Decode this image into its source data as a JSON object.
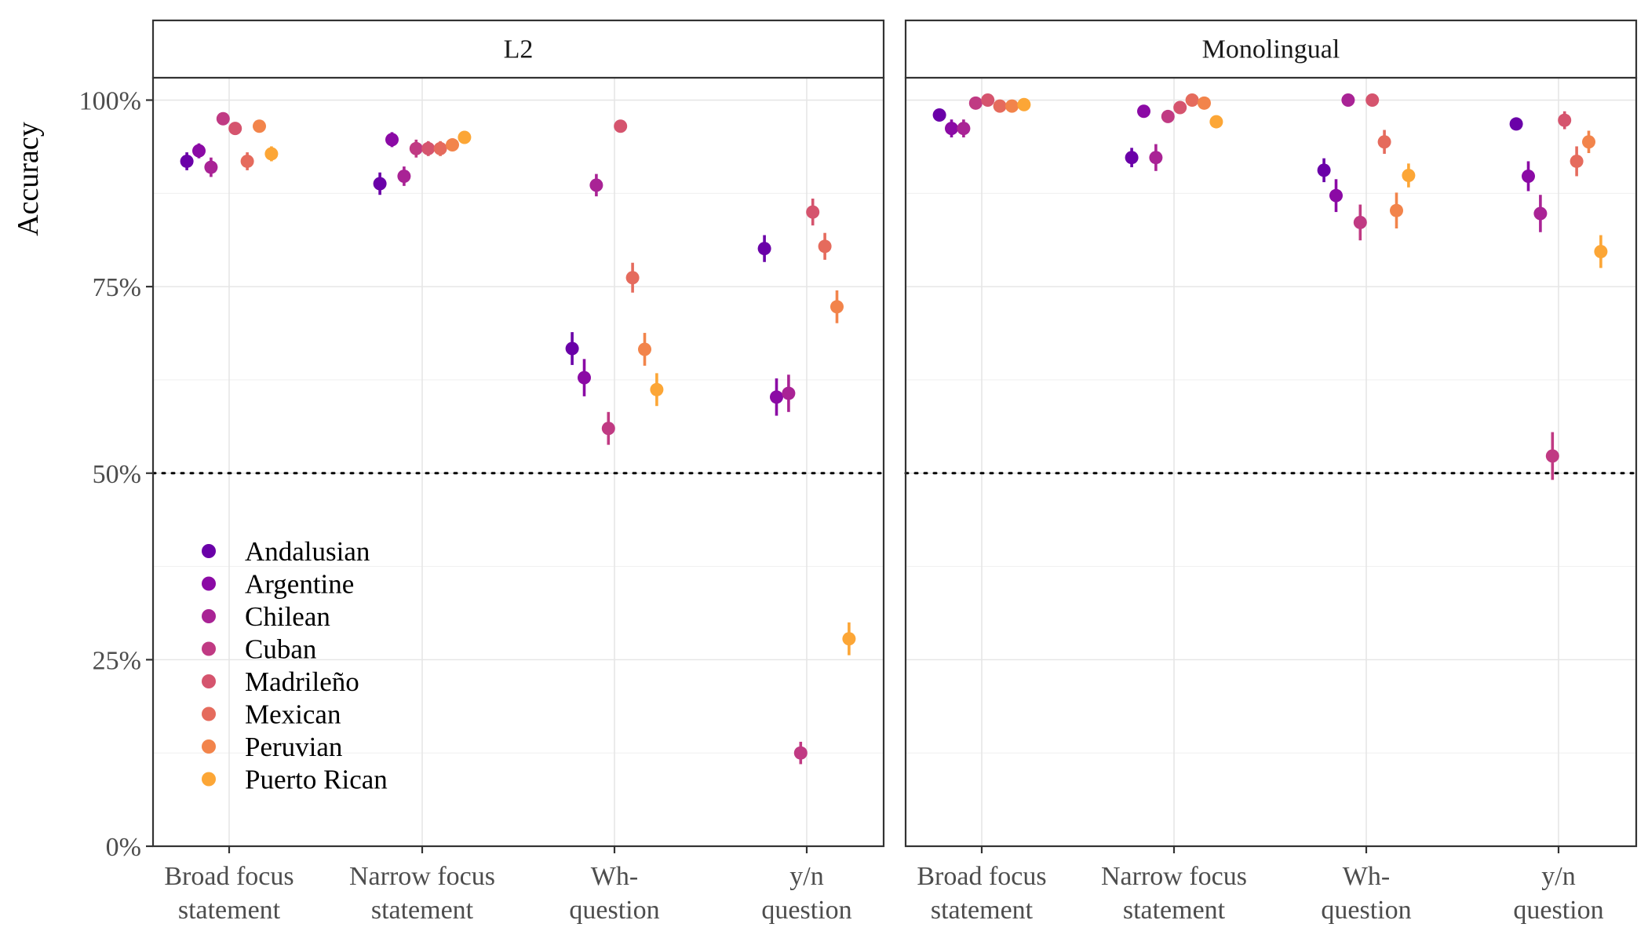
{
  "chart_data": {
    "type": "scatter",
    "ylabel": "Accuracy",
    "xlabel": "",
    "ylim": [
      0,
      1.03
    ],
    "y_ticks": [
      {
        "value": 0,
        "label": "0%"
      },
      {
        "value": 0.25,
        "label": "25%"
      },
      {
        "value": 0.5,
        "label": "50%"
      },
      {
        "value": 0.75,
        "label": "75%"
      },
      {
        "value": 1.0,
        "label": "100%"
      }
    ],
    "reference_line": {
      "value": 0.5,
      "style": "dotted"
    },
    "categories": [
      [
        "Broad focus",
        "statement"
      ],
      [
        "Narrow focus",
        "statement"
      ],
      [
        "Wh-",
        "question"
      ],
      [
        "y/n",
        "question"
      ]
    ],
    "legend_position": "bottom-left of first panel",
    "grid": true,
    "series": [
      {
        "name": "Andalusian",
        "color": "#6a00a8"
      },
      {
        "name": "Argentine",
        "color": "#8b0aa5"
      },
      {
        "name": "Chilean",
        "color": "#a92395"
      },
      {
        "name": "Cuban",
        "color": "#c03a83"
      },
      {
        "name": "Madrileño",
        "color": "#d5546e"
      },
      {
        "name": "Mexican",
        "color": "#e56b5d"
      },
      {
        "name": "Peruvian",
        "color": "#f2844b"
      },
      {
        "name": "Puerto Rican",
        "color": "#fca636"
      }
    ],
    "panels": [
      {
        "title": "L2",
        "values": [
          [
            0.918,
            0.888,
            0.667,
            0.801
          ],
          [
            0.932,
            0.947,
            0.628,
            0.602
          ],
          [
            0.91,
            0.898,
            0.886,
            0.607
          ],
          [
            0.975,
            0.935,
            0.56,
            0.125
          ],
          [
            0.962,
            0.935,
            0.965,
            0.85
          ],
          [
            0.918,
            0.935,
            0.762,
            0.804
          ],
          [
            0.965,
            0.94,
            0.666,
            0.723
          ],
          [
            0.928,
            0.95,
            0.612,
            0.278
          ]
        ],
        "errors": [
          [
            0.012,
            0.015,
            0.022,
            0.018
          ],
          [
            0.01,
            0.01,
            0.025,
            0.025
          ],
          [
            0.013,
            0.013,
            0.015,
            0.025
          ],
          [
            0.008,
            0.012,
            0.022,
            0.015
          ],
          [
            0.008,
            0.01,
            0.008,
            0.018
          ],
          [
            0.012,
            0.01,
            0.02,
            0.018
          ],
          [
            0.008,
            0.008,
            0.022,
            0.022
          ],
          [
            0.01,
            0.008,
            0.022,
            0.022
          ]
        ]
      },
      {
        "title": "Monolingual",
        "values": [
          [
            0.98,
            0.923,
            0.906,
            0.968
          ],
          [
            0.962,
            0.985,
            0.872,
            0.898
          ],
          [
            0.962,
            0.923,
            1.0,
            0.848
          ],
          [
            0.996,
            0.978,
            0.836,
            0.523
          ],
          [
            1.0,
            0.99,
            1.0,
            0.973
          ],
          [
            0.992,
            1.0,
            0.944,
            0.918
          ],
          [
            0.992,
            0.996,
            0.852,
            0.944
          ],
          [
            0.994,
            0.971,
            0.899,
            0.797
          ]
        ],
        "errors": [
          [
            0.005,
            0.013,
            0.016,
            0.005
          ],
          [
            0.012,
            0.006,
            0.022,
            0.02
          ],
          [
            0.012,
            0.018,
            0.004,
            0.025
          ],
          [
            0.005,
            0.006,
            0.024,
            0.032
          ],
          [
            0.003,
            0.005,
            0.004,
            0.012
          ],
          [
            0.004,
            0.004,
            0.016,
            0.02
          ],
          [
            0.004,
            0.003,
            0.024,
            0.015
          ],
          [
            0.004,
            0.006,
            0.016,
            0.022
          ]
        ]
      }
    ]
  }
}
